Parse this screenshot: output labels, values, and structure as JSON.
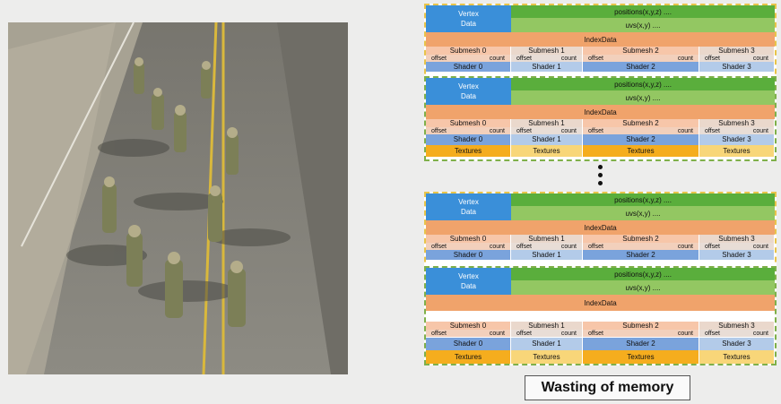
{
  "diagram": {
    "vertex_label_line1": "Vertex",
    "vertex_label_line2": "Data",
    "positions_label": "positions(x,y,z)  ....",
    "uvs_label": "uvs(x,y)  ....",
    "index_label": "IndexData",
    "submeshes": [
      "Submesh 0",
      "Submesh 1",
      "Submesh 2",
      "Submesh 3"
    ],
    "offset_label": "offset",
    "count_label": "count",
    "shaders": [
      "Shader 0",
      "Shader 1",
      "Shader 2",
      "Shader 3"
    ],
    "textures_label": "Textures"
  },
  "caption": "Wasting of memory",
  "image": {
    "subject": "soldiers-running-on-road"
  },
  "colors": {
    "vertex": "#3a8fd9",
    "positions": "#5aae3c",
    "uvs": "#93c762",
    "index": "#f0a36b",
    "texture": "#f5ad1e",
    "border_yellow": "#e8c44a",
    "border_green": "#7fb04a"
  }
}
